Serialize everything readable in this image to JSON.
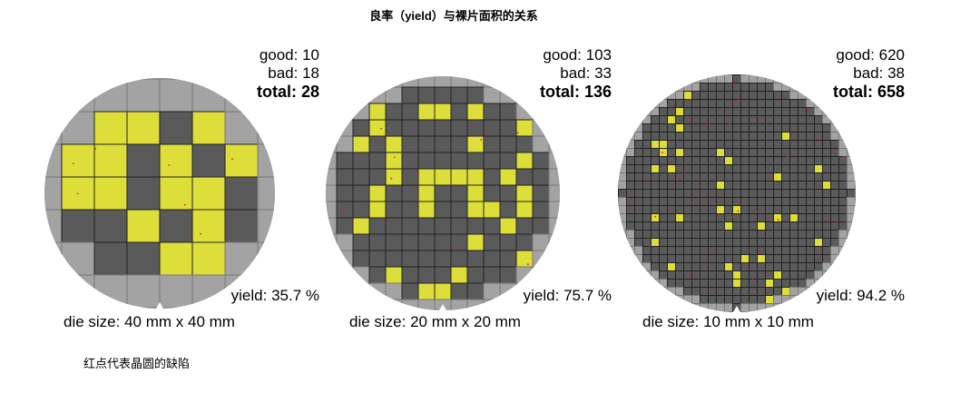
{
  "title": "良率（yield）与裸片面积的关系",
  "wafers": [
    {
      "good": "good: 10",
      "bad": "bad: 18",
      "total": "total: 28",
      "yield": "yield: 35.7 %",
      "die_size": "die size: 40 mm x 40 mm"
    },
    {
      "good": "good: 103",
      "bad": "bad: 33",
      "total": "total: 136",
      "yield": "yield: 75.7 %",
      "die_size": "die size: 20 mm x 20 mm"
    },
    {
      "good": "good: 620",
      "bad": "bad: 38",
      "total": "total: 658",
      "yield": "yield: 94.2 %",
      "die_size": "die size: 10 mm x 10 mm"
    }
  ],
  "caption": "红点代表晶圆的缺陷"
}
